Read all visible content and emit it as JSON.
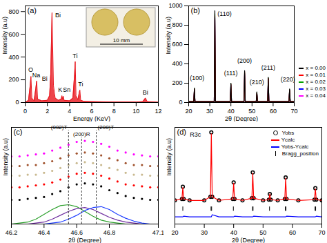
{
  "chart_data": [
    {
      "type": "area",
      "title": "(a)",
      "xlabel": "Energy (KeV)",
      "ylabel": "Intensity (a.u)",
      "xlim": [
        0,
        12
      ],
      "xticks": [
        0,
        2,
        4,
        6,
        8,
        10,
        12
      ],
      "ylim": [
        0,
        850
      ],
      "yticks": [
        0,
        200,
        400,
        600,
        800
      ],
      "x": [
        0,
        0.3,
        0.45,
        0.52,
        0.6,
        0.8,
        0.95,
        1.04,
        1.12,
        1.5,
        2.0,
        2.2,
        2.3,
        2.42,
        2.55,
        2.7,
        3.0,
        3.25,
        3.31,
        3.38,
        3.44,
        3.5,
        4.0,
        4.3,
        4.45,
        4.51,
        4.58,
        4.75,
        4.88,
        4.93,
        5.0,
        5.3,
        6,
        8,
        10,
        10.6,
        10.84,
        11.0,
        12
      ],
      "series": [
        {
          "color": "#e8141c",
          "values": [
            0,
            20,
            150,
            230,
            40,
            15,
            120,
            190,
            30,
            15,
            20,
            60,
            250,
            790,
            150,
            40,
            20,
            30,
            60,
            30,
            55,
            20,
            15,
            40,
            250,
            360,
            60,
            25,
            90,
            110,
            20,
            10,
            8,
            5,
            5,
            8,
            40,
            8,
            3
          ]
        }
      ],
      "annotations": [
        {
          "text": "O",
          "x": 0.5,
          "y": 290
        },
        {
          "text": "Na",
          "x": 1.0,
          "y": 240
        },
        {
          "text": "Bi",
          "x": 1.75,
          "y": 210
        },
        {
          "text": "Bi",
          "x": 2.95,
          "y": 770
        },
        {
          "text": "K",
          "x": 3.15,
          "y": 110
        },
        {
          "text": "Sn",
          "x": 3.75,
          "y": 110
        },
        {
          "text": "Ti",
          "x": 4.5,
          "y": 410
        },
        {
          "text": "Ti",
          "x": 5.0,
          "y": 160
        },
        {
          "text": "Bi",
          "x": 10.84,
          "y": 90
        }
      ],
      "inset_label": "10 mm"
    },
    {
      "type": "line",
      "title": "(b)",
      "xlabel": "2θ (Degree)",
      "ylabel": "Intensity (a.u)",
      "xlim": [
        20,
        70
      ],
      "xticks": [
        20,
        30,
        40,
        50,
        60,
        70
      ],
      "ylim": [
        0,
        1000
      ],
      "yticks": [
        0,
        200,
        400,
        600,
        800,
        1000
      ],
      "legend": "bottom-right",
      "x": [
        20,
        22.4,
        22.7,
        23.0,
        32.1,
        32.4,
        32.7,
        39.7,
        40.0,
        40.3,
        46.2,
        46.5,
        46.8,
        52.0,
        52.3,
        52.6,
        57.4,
        57.7,
        58.0,
        67.5,
        67.8,
        68.1,
        70
      ],
      "series": [
        {
          "name": "x = 0.00",
          "color": "#000000",
          "values": [
            10,
            10,
            150,
            10,
            10,
            950,
            10,
            10,
            200,
            10,
            10,
            330,
            10,
            10,
            110,
            10,
            10,
            260,
            10,
            10,
            140,
            10,
            10
          ]
        },
        {
          "name": "x = 0.01",
          "color": "#ff0000",
          "values": [
            10,
            10,
            140,
            10,
            10,
            900,
            10,
            10,
            190,
            10,
            10,
            320,
            10,
            10,
            100,
            10,
            10,
            250,
            10,
            10,
            130,
            10,
            10
          ]
        },
        {
          "name": "x = 0.02",
          "color": "#00a000",
          "values": [
            10,
            10,
            145,
            10,
            10,
            920,
            10,
            10,
            195,
            10,
            10,
            310,
            10,
            10,
            105,
            10,
            10,
            255,
            10,
            10,
            135,
            10,
            10
          ]
        },
        {
          "name": "x = 0.03",
          "color": "#0000ff",
          "values": [
            10,
            10,
            135,
            10,
            10,
            880,
            10,
            10,
            185,
            10,
            10,
            300,
            10,
            10,
            95,
            10,
            10,
            245,
            10,
            10,
            125,
            10,
            10
          ]
        },
        {
          "name": "x = 0.04",
          "color": "#ff00ff",
          "values": [
            10,
            10,
            130,
            10,
            10,
            860,
            10,
            10,
            180,
            10,
            10,
            290,
            10,
            10,
            90,
            10,
            10,
            240,
            10,
            10,
            120,
            10,
            10
          ]
        }
      ],
      "annotations": [
        {
          "text": "(100)",
          "x": 24,
          "y": 250
        },
        {
          "text": "(110)",
          "x": 37,
          "y": 920
        },
        {
          "text": "(111)",
          "x": 40,
          "y": 300
        },
        {
          "text": "(200)",
          "x": 46.5,
          "y": 430
        },
        {
          "text": "(210)",
          "x": 52.3,
          "y": 210
        },
        {
          "text": "(211)",
          "x": 57.7,
          "y": 360
        },
        {
          "text": "(220)",
          "x": 67.0,
          "y": 240
        }
      ]
    },
    {
      "type": "scatter",
      "title": "(c)",
      "xlabel": "2θ (Degree)",
      "ylabel": "Intensity (a.u)",
      "tick_labels": "x",
      "xlim": [
        46.2,
        47.1
      ],
      "xticks": [
        46.2,
        46.4,
        46.6,
        46.8,
        47.1
      ],
      "ylim": [
        0,
        1
      ],
      "x": [
        46.2,
        46.25,
        46.3,
        46.35,
        46.4,
        46.45,
        46.5,
        46.55,
        46.6,
        46.65,
        46.7,
        46.75,
        46.8,
        46.85,
        46.9,
        46.95,
        47.0,
        47.05,
        47.1
      ],
      "series": [
        {
          "color": "#000000",
          "marker": "dot",
          "values": [
            0.25,
            0.25,
            0.26,
            0.27,
            0.28,
            0.31,
            0.34,
            0.38,
            0.41,
            0.42,
            0.41,
            0.39,
            0.35,
            0.32,
            0.29,
            0.27,
            0.26,
            0.25,
            0.25
          ]
        },
        {
          "color": "#ff0000",
          "marker": "dot",
          "values": [
            0.38,
            0.38,
            0.39,
            0.4,
            0.41,
            0.43,
            0.46,
            0.49,
            0.52,
            0.53,
            0.52,
            0.5,
            0.47,
            0.44,
            0.41,
            0.4,
            0.39,
            0.38,
            0.38
          ]
        },
        {
          "color": "#c9b98f",
          "marker": "dot",
          "values": [
            0.5,
            0.5,
            0.51,
            0.51,
            0.53,
            0.55,
            0.58,
            0.61,
            0.63,
            0.64,
            0.63,
            0.61,
            0.58,
            0.56,
            0.53,
            0.51,
            0.51,
            0.5,
            0.5
          ]
        },
        {
          "color": "#a0522d",
          "marker": "dot",
          "values": [
            0.6,
            0.6,
            0.61,
            0.61,
            0.63,
            0.65,
            0.68,
            0.71,
            0.73,
            0.74,
            0.73,
            0.71,
            0.68,
            0.66,
            0.63,
            0.61,
            0.61,
            0.6,
            0.6
          ]
        },
        {
          "color": "#ff00ff",
          "marker": "dot",
          "values": [
            0.7,
            0.7,
            0.71,
            0.72,
            0.73,
            0.76,
            0.79,
            0.82,
            0.85,
            0.86,
            0.85,
            0.83,
            0.8,
            0.76,
            0.74,
            0.72,
            0.71,
            0.7,
            0.7
          ]
        },
        {
          "type": "line",
          "color": "#2ca02c",
          "values": [
            0,
            0.01,
            0.02,
            0.05,
            0.1,
            0.15,
            0.19,
            0.2,
            0.18,
            0.13,
            0.08,
            0.04,
            0.02,
            0.01,
            0,
            0,
            0,
            0,
            0
          ]
        },
        {
          "type": "line",
          "color": "#7030a0",
          "values": [
            0,
            0,
            0,
            0.01,
            0.02,
            0.05,
            0.09,
            0.13,
            0.16,
            0.17,
            0.15,
            0.11,
            0.07,
            0.04,
            0.02,
            0.01,
            0,
            0,
            0
          ]
        },
        {
          "type": "line",
          "color": "#1f3fff",
          "values": [
            0,
            0,
            0,
            0,
            0,
            0.01,
            0.02,
            0.05,
            0.09,
            0.14,
            0.17,
            0.18,
            0.15,
            0.1,
            0.06,
            0.03,
            0.01,
            0,
            0
          ]
        }
      ],
      "reference_lines": [
        {
          "text": "(002)T",
          "x": 46.55,
          "y": 0.97
        },
        {
          "text": "(200)R",
          "x": 46.63,
          "y": 0.9
        },
        {
          "text": "(200)T",
          "x": 46.72,
          "y": 0.97
        }
      ]
    },
    {
      "type": "scatter",
      "title": "(d)",
      "xlabel": "2θ (Degree)",
      "ylabel": "Intensity (a.u)",
      "tick_labels": "x",
      "xlim": [
        20,
        70
      ],
      "xticks": [
        20,
        30,
        40,
        50,
        60,
        70
      ],
      "ylim": [
        -0.3,
        1.05
      ],
      "legend": "top-right",
      "x": [
        20,
        22.4,
        22.7,
        23.0,
        25,
        30,
        32.1,
        32.4,
        32.7,
        35,
        39.7,
        40.0,
        40.3,
        43,
        46.2,
        46.5,
        46.8,
        50,
        52.0,
        52.3,
        52.6,
        55,
        57.4,
        57.7,
        58.0,
        62,
        67.5,
        67.8,
        68.1,
        70
      ],
      "series": [
        {
          "name": "Yobs",
          "marker": "circle",
          "color": "#000000",
          "values": [
            0.03,
            0.05,
            0.22,
            0.05,
            0.03,
            0.03,
            0.08,
            0.98,
            0.08,
            0.03,
            0.05,
            0.28,
            0.05,
            0.03,
            0.06,
            0.42,
            0.06,
            0.03,
            0.04,
            0.12,
            0.04,
            0.03,
            0.05,
            0.35,
            0.05,
            0.03,
            0.04,
            0.2,
            0.04,
            0.03
          ]
        },
        {
          "name": "Ycalc",
          "type": "line",
          "color": "#ff0000",
          "values": [
            0.03,
            0.05,
            0.21,
            0.05,
            0.03,
            0.03,
            0.08,
            0.96,
            0.08,
            0.03,
            0.05,
            0.27,
            0.05,
            0.03,
            0.06,
            0.41,
            0.06,
            0.03,
            0.04,
            0.12,
            0.04,
            0.03,
            0.05,
            0.34,
            0.05,
            0.03,
            0.04,
            0.19,
            0.04,
            0.03
          ]
        },
        {
          "name": "Yobs-Ycalc",
          "type": "line",
          "color": "#0000ff",
          "values": [
            -0.2,
            -0.2,
            -0.2,
            -0.19,
            -0.2,
            -0.2,
            -0.2,
            -0.2,
            -0.17,
            -0.2,
            -0.2,
            -0.2,
            -0.19,
            -0.2,
            -0.2,
            -0.2,
            -0.19,
            -0.2,
            -0.2,
            -0.2,
            -0.2,
            -0.2,
            -0.2,
            -0.2,
            -0.19,
            -0.2,
            -0.2,
            -0.2,
            -0.19,
            -0.2
          ]
        },
        {
          "name": "Bragg_position",
          "type": "tick",
          "color": "#000000",
          "x": [
            22.7,
            32.3,
            32.5,
            39.9,
            46.4,
            46.6,
            52.2,
            57.6,
            57.8,
            67.7,
            67.9
          ],
          "values": [
            -0.09,
            -0.09,
            -0.09,
            -0.09,
            -0.09,
            -0.09,
            -0.09,
            -0.09,
            -0.09,
            -0.09,
            -0.09
          ]
        }
      ],
      "annotations": [
        {
          "text": "R3c",
          "x": 27,
          "y": 0.95
        }
      ]
    }
  ]
}
